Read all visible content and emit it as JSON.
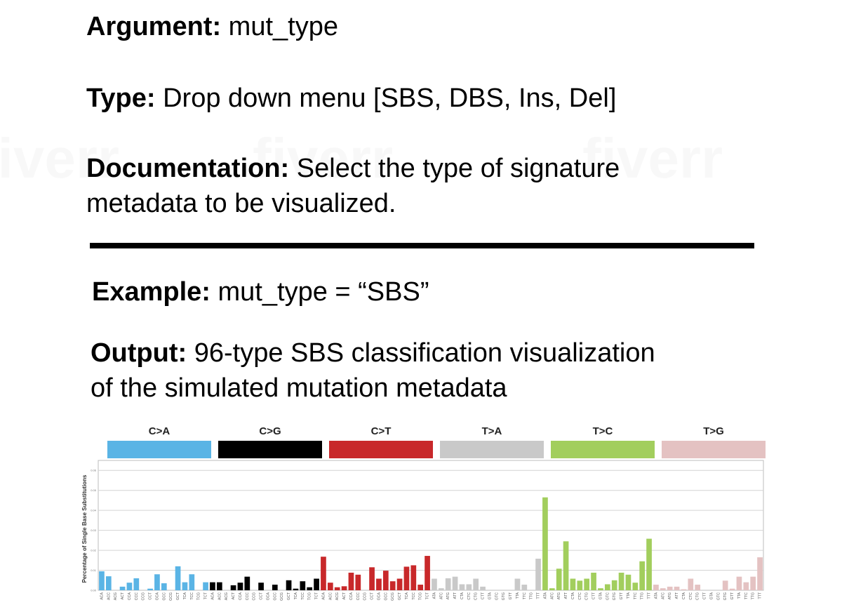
{
  "doc": {
    "argument_label": "Argument:",
    "argument_value": "mut_type",
    "type_label": "Type:",
    "type_value": "Drop down menu [SBS, DBS, Ins, Del]",
    "documentation_label": "Documentation:",
    "documentation_line1": "Select the type of signature",
    "documentation_line2": "metadata to be visualized.",
    "example_label": "Example:",
    "example_value": "mut_type = “SBS”",
    "output_label": "Output:",
    "output_line1": "96-type SBS classification visualization",
    "output_line2": "of the simulated mutation metadata"
  },
  "chart_data": {
    "type": "bar",
    "ylabel": "Percentage of Single Base Substitutions",
    "ylim": [
      0,
      0.065
    ],
    "grid": true,
    "y_tick_labels": [
      "0.00",
      "0.01",
      "0.02",
      "0.03",
      "0.04",
      "0.05",
      "0.06"
    ],
    "groups": [
      {
        "name": "C>A",
        "color": "#5ab4e5"
      },
      {
        "name": "C>G",
        "color": "#000000"
      },
      {
        "name": "C>T",
        "color": "#c8282a"
      },
      {
        "name": "T>A",
        "color": "#c9c9c9"
      },
      {
        "name": "T>C",
        "color": "#a2ce5d"
      },
      {
        "name": "T>G",
        "color": "#e4c2c2"
      }
    ],
    "categories": [
      "ACA",
      "ACC",
      "ACG",
      "ACT",
      "CCA",
      "CCC",
      "CCG",
      "CCT",
      "GCA",
      "GCC",
      "GCG",
      "GCT",
      "TCA",
      "TCC",
      "TCG",
      "TCT",
      "ACA",
      "ACC",
      "ACG",
      "ACT",
      "CCA",
      "CCC",
      "CCG",
      "CCT",
      "GCA",
      "GCC",
      "GCG",
      "GCT",
      "TCA",
      "TCC",
      "TCG",
      "TCT",
      "ACA",
      "ACC",
      "ACG",
      "ACT",
      "CCA",
      "CCC",
      "CCG",
      "CCT",
      "GCA",
      "GCC",
      "GCG",
      "GCT",
      "TCA",
      "TCC",
      "TCG",
      "TCT",
      "ATA",
      "ATC",
      "ATG",
      "ATT",
      "CTA",
      "CTC",
      "CTG",
      "CTT",
      "GTA",
      "GTC",
      "GTG",
      "GTT",
      "TTA",
      "TTC",
      "TTG",
      "TTT",
      "ATA",
      "ATC",
      "ATG",
      "ATT",
      "CTA",
      "CTC",
      "CTG",
      "CTT",
      "GTA",
      "GTC",
      "GTG",
      "GTT",
      "TTA",
      "TTC",
      "TTG",
      "TTT",
      "ATA",
      "ATC",
      "ATG",
      "ATT",
      "CTA",
      "CTC",
      "CTG",
      "CTT",
      "GTA",
      "GTC",
      "GTG",
      "GTT",
      "TTA",
      "TTC",
      "TTG",
      "TTT"
    ],
    "values": [
      0.0095,
      0.007,
      0,
      0.0018,
      0.0038,
      0.006,
      0,
      0.0008,
      0.008,
      0.0035,
      0,
      0.012,
      0.004,
      0.008,
      0,
      0.004,
      0.004,
      0.004,
      0,
      0.0025,
      0.0038,
      0.0068,
      0,
      0.0038,
      0,
      0.0028,
      0,
      0.005,
      0.0008,
      0.0045,
      0.0015,
      0.0058,
      0.0168,
      0.0038,
      0.0015,
      0.002,
      0.0088,
      0.0078,
      0,
      0.0115,
      0.0058,
      0.0098,
      0.0045,
      0.0058,
      0.0118,
      0.0125,
      0.0028,
      0.0172,
      0.0058,
      0.001,
      0.006,
      0.0068,
      0.003,
      0.003,
      0.0058,
      0.0018,
      0,
      0,
      0,
      0,
      0.0058,
      0.0028,
      0,
      0.0158,
      0.0465,
      0.001,
      0.0108,
      0.0245,
      0.0058,
      0.0048,
      0.0058,
      0.0088,
      0.001,
      0.003,
      0.005,
      0.0088,
      0.0078,
      0.0038,
      0.0145,
      0.0258,
      0.0028,
      0.001,
      0.0018,
      0.0018,
      0.0005,
      0.0058,
      0.0028,
      0,
      0,
      0,
      0.0048,
      0.0008,
      0.0068,
      0.004,
      0.0068,
      0.0165
    ]
  }
}
